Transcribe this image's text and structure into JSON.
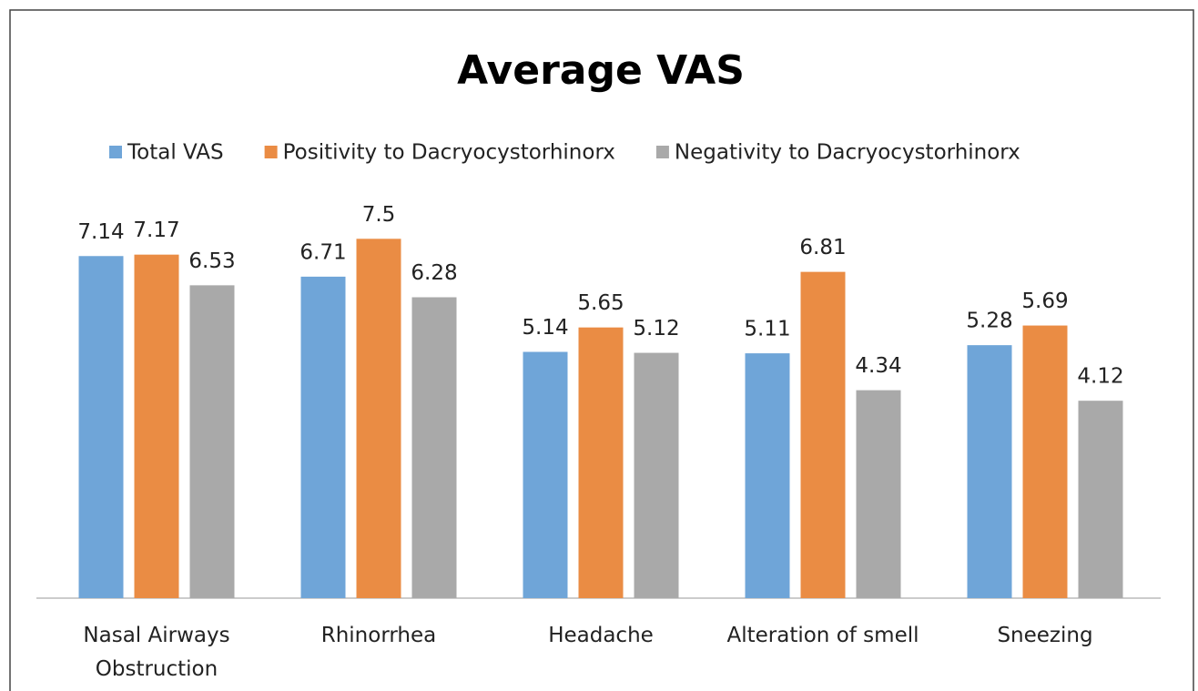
{
  "chart_data": {
    "type": "bar",
    "title": "Average VAS",
    "categories": [
      "Nasal Airways Obstruction",
      "Rhinorrhea",
      "Headache",
      "Alteration of smell",
      "Sneezing"
    ],
    "series": [
      {
        "name": "Total VAS",
        "color": "#6fa5d8",
        "values": [
          7.14,
          6.71,
          5.14,
          5.11,
          5.28
        ]
      },
      {
        "name": "Positivity to Dacryocystorhinorx",
        "color": "#ea8c44",
        "values": [
          7.17,
          7.5,
          5.65,
          6.81,
          5.69
        ]
      },
      {
        "name": "Negativity to Dacryocystorhinorx",
        "color": "#a9a9a9",
        "values": [
          6.53,
          6.28,
          5.12,
          4.34,
          4.12
        ]
      }
    ],
    "ylim": [
      0,
      8
    ],
    "legend": "top"
  }
}
